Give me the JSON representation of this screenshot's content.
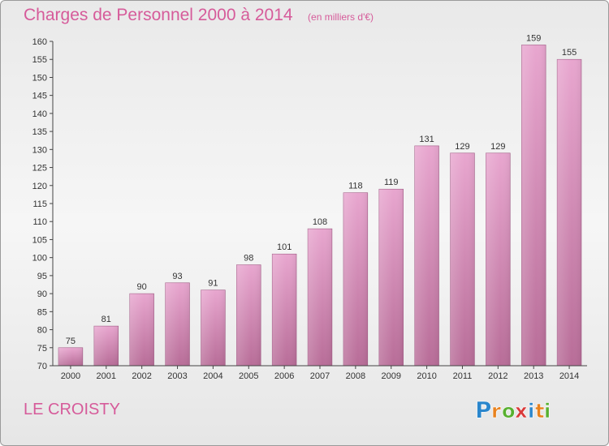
{
  "chart_data": {
    "type": "bar",
    "title": "Charges de Personnel 2000 à 2014",
    "subtitle": "(en milliers d'€)",
    "categories": [
      "2000",
      "2001",
      "2002",
      "2003",
      "2004",
      "2005",
      "2006",
      "2007",
      "2008",
      "2009",
      "2010",
      "2011",
      "2012",
      "2013",
      "2014"
    ],
    "values": [
      75,
      81,
      90,
      93,
      91,
      98,
      101,
      108,
      118,
      119,
      131,
      129,
      129,
      159,
      155
    ],
    "ylim": [
      70,
      160
    ],
    "yticks": [
      70,
      75,
      80,
      85,
      90,
      95,
      100,
      105,
      110,
      115,
      120,
      125,
      130,
      135,
      140,
      145,
      150,
      155,
      160
    ],
    "grid": false,
    "bar_color": "#d98cb8"
  },
  "commune": "LE CROISTY",
  "logo": {
    "letters": [
      "P",
      "r",
      "o",
      "x",
      "i",
      "t",
      "i"
    ],
    "colors": [
      "#2a86cc",
      "#e8821e",
      "#58b030",
      "#d93a3a",
      "#2a86cc",
      "#e8821e",
      "#58b030"
    ]
  }
}
